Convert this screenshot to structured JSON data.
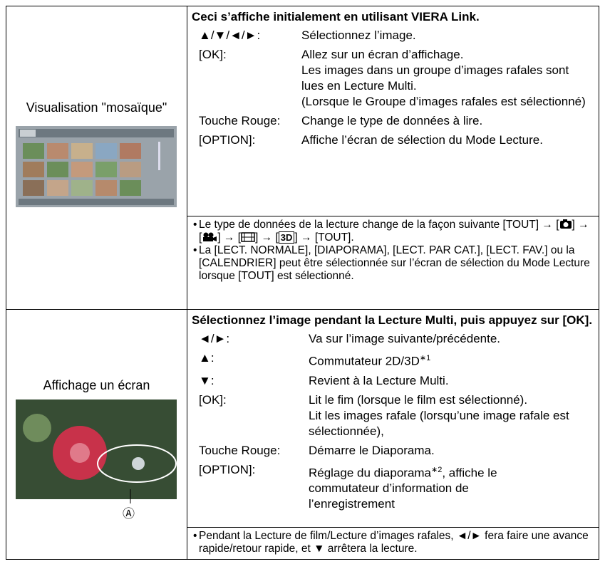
{
  "rows": [
    {
      "label": "Visualisation \"mosaïque\"",
      "heading": "Ceci s’affiche initialement en utilisant VIERA Link.",
      "items": [
        {
          "key": "▲/▼/◄/►:",
          "desc": [
            "Sélectionnez l’image."
          ]
        },
        {
          "key": "[OK]:",
          "desc": [
            "Allez sur un écran d’affichage.",
            "Les images dans un groupe d’images rafales sont lues en Lecture Multi.",
            "(Lorsque le Groupe d’images rafales est sélectionné)"
          ]
        },
        {
          "key": "Touche Rouge:",
          "desc": [
            "Change le type de données à lire."
          ]
        },
        {
          "key": "[OPTION]:",
          "desc": [
            "Affiche l’écran de sélection du Mode Lecture."
          ]
        }
      ],
      "notes": [
        [
          "Le type de données de la lecture change de la façon suivante [TOUT] → [",
          "] → [",
          "] → [",
          "] → [",
          "3D",
          "] → [TOUT]."
        ],
        [
          "La [LECT. NORMALE], [DIAPORAMA], [LECT. PAR CAT.], [LECT. FAV.] ou la [CALENDRIER] peut être sélectionnée sur l’écran de sélection du Mode Lecture lorsque [TOUT] est sélectionné."
        ]
      ]
    },
    {
      "label": "Affichage un écran",
      "callout": "Ⓐ",
      "heading": "Sélectionnez l’image pendant la Lecture Multi, puis appuyez sur [OK].",
      "items": [
        {
          "key": "◄/►:",
          "desc": [
            "Va sur l’image suivante/précédente."
          ]
        },
        {
          "key": "▲:",
          "desc": [
            "Commutateur 2D/3D",
            "∗1"
          ]
        },
        {
          "key": "▼:",
          "desc": [
            "Revient à la Lecture Multi."
          ]
        },
        {
          "key": "[OK]:",
          "desc": [
            "Lit le fim (lorsque le film est sélectionné).",
            "Lit les images rafale (lorsqu’une image rafale est sélectionnée),"
          ]
        },
        {
          "key": "Touche Rouge:",
          "desc": [
            "Démarre le Diaporama."
          ]
        },
        {
          "key": "[OPTION]:",
          "desc": [
            "Réglage du diaporama",
            "∗2",
            ", affiche le commutateur d’information de l’enregistrement"
          ]
        }
      ],
      "notes": [
        [
          "Pendant la Lecture de film/Lecture d’images rafales, ◄/► fera faire une avance rapide/retour rapide, et ▼ arrêtera la lecture."
        ]
      ]
    }
  ]
}
